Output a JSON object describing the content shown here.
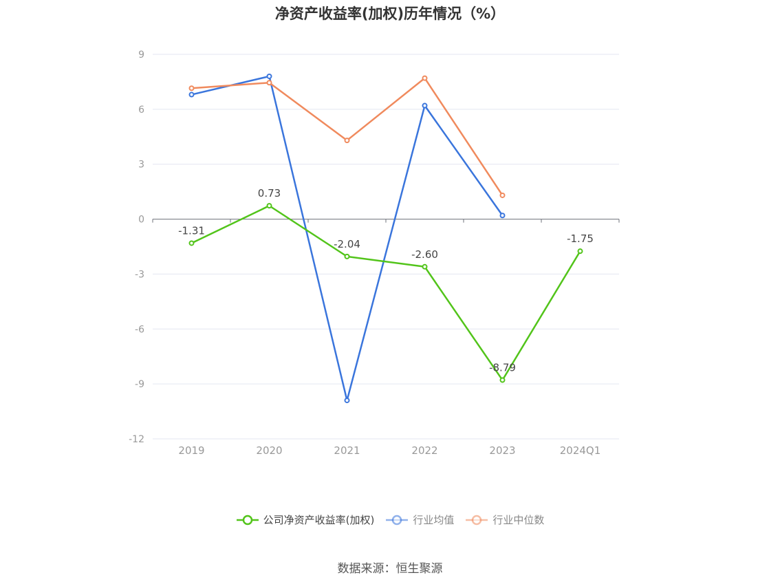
{
  "chart_data": {
    "type": "line",
    "title": "净资产收益率(加权)历年情况（%）",
    "categories": [
      "2019",
      "2020",
      "2021",
      "2022",
      "2023",
      "2024Q1"
    ],
    "ylim": [
      -12,
      9
    ],
    "yticks": [
      9,
      6,
      3,
      0,
      -3,
      -6,
      -9,
      -12
    ],
    "grid": true,
    "legend_position": "bottom",
    "series": [
      {
        "name": "公司净资产收益率(加权)",
        "color": "#52c41a",
        "values": [
          -1.31,
          0.73,
          -2.04,
          -2.6,
          -8.79,
          -1.75
        ],
        "labels": [
          "-1.31",
          "0.73",
          "-2.04",
          "-2.60",
          "-8.79",
          "-1.75"
        ]
      },
      {
        "name": "行业均值",
        "color": "#3a75dc",
        "values": [
          6.8,
          7.8,
          -9.9,
          6.2,
          0.2,
          null
        ]
      },
      {
        "name": "行业中位数",
        "color": "#f08a5d",
        "values": [
          7.15,
          7.45,
          4.3,
          7.7,
          1.3,
          null
        ]
      }
    ]
  },
  "source": "数据来源：恒生聚源"
}
